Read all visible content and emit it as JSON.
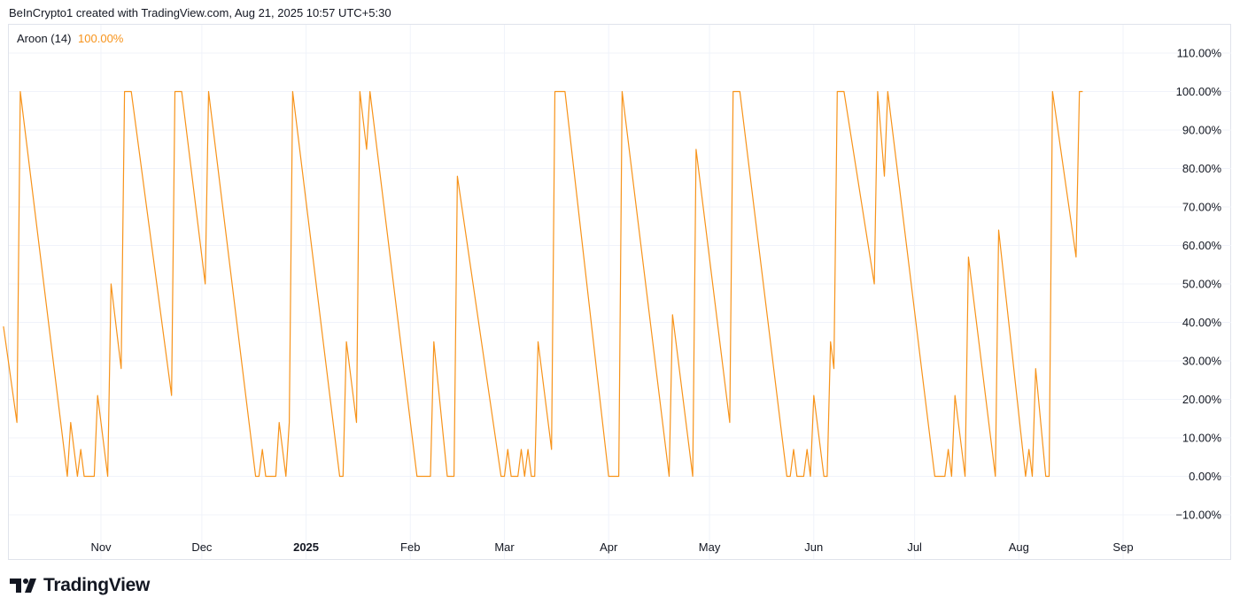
{
  "header": {
    "attribution": "BeInCrypto1 created with TradingView.com, Aug 21, 2025 10:57 UTC+5:30"
  },
  "legend": {
    "name": "Aroon (14)",
    "value": "100.00%"
  },
  "brand": {
    "name": "TradingView"
  },
  "colors": {
    "line": "#f7931a",
    "grid": "#f0f3fa",
    "text": "#131722"
  },
  "chart_data": {
    "type": "line",
    "ylim": [
      -15,
      117
    ],
    "grid": true,
    "y_ticks": [
      {
        "value": 110,
        "label": "110.00%"
      },
      {
        "value": 100,
        "label": "100.00%"
      },
      {
        "value": 90,
        "label": "90.00%"
      },
      {
        "value": 80,
        "label": "80.00%"
      },
      {
        "value": 70,
        "label": "70.00%"
      },
      {
        "value": 60,
        "label": "60.00%"
      },
      {
        "value": 50,
        "label": "50.00%"
      },
      {
        "value": 40,
        "label": "40.00%"
      },
      {
        "value": 30,
        "label": "30.00%"
      },
      {
        "value": 20,
        "label": "20.00%"
      },
      {
        "value": 10,
        "label": "10.00%"
      },
      {
        "value": 0,
        "label": "0.00%"
      },
      {
        "value": -10,
        "label": "−10.00%"
      }
    ],
    "x_ticks": [
      {
        "date": "2024-11-01",
        "label": "Nov",
        "bold": false
      },
      {
        "date": "2024-12-01",
        "label": "Dec",
        "bold": false
      },
      {
        "date": "2025-01-01",
        "label": "2025",
        "bold": true
      },
      {
        "date": "2025-02-01",
        "label": "Feb",
        "bold": false
      },
      {
        "date": "2025-03-01",
        "label": "Mar",
        "bold": false
      },
      {
        "date": "2025-04-01",
        "label": "Apr",
        "bold": false
      },
      {
        "date": "2025-05-01",
        "label": "May",
        "bold": false
      },
      {
        "date": "2025-06-01",
        "label": "Jun",
        "bold": false
      },
      {
        "date": "2025-07-01",
        "label": "Jul",
        "bold": false
      },
      {
        "date": "2025-08-01",
        "label": "Aug",
        "bold": false
      },
      {
        "date": "2025-09-01",
        "label": "Sep",
        "bold": false
      }
    ],
    "series": [
      {
        "points": [
          [
            "2024-10-03",
            39
          ],
          [
            "2024-10-07",
            14
          ],
          [
            "2024-10-08",
            100
          ],
          [
            "2024-10-22",
            0
          ],
          [
            "2024-10-23",
            14
          ],
          [
            "2024-10-24",
            7
          ],
          [
            "2024-10-25",
            0
          ],
          [
            "2024-10-26",
            7
          ],
          [
            "2024-10-27",
            0
          ],
          [
            "2024-10-30",
            0
          ],
          [
            "2024-10-31",
            21
          ],
          [
            "2024-11-03",
            0
          ],
          [
            "2024-11-04",
            50
          ],
          [
            "2024-11-07",
            28
          ],
          [
            "2024-11-08",
            100
          ],
          [
            "2024-11-10",
            100
          ],
          [
            "2024-11-22",
            21
          ],
          [
            "2024-11-23",
            100
          ],
          [
            "2024-11-25",
            100
          ],
          [
            "2024-12-02",
            50
          ],
          [
            "2024-12-03",
            100
          ],
          [
            "2024-12-17",
            0
          ],
          [
            "2024-12-18",
            0
          ],
          [
            "2024-12-19",
            7
          ],
          [
            "2024-12-20",
            0
          ],
          [
            "2024-12-23",
            0
          ],
          [
            "2024-12-24",
            14
          ],
          [
            "2024-12-26",
            0
          ],
          [
            "2024-12-27",
            14
          ],
          [
            "2024-12-28",
            100
          ],
          [
            "2025-01-11",
            0
          ],
          [
            "2025-01-12",
            0
          ],
          [
            "2025-01-13",
            35
          ],
          [
            "2025-01-16",
            14
          ],
          [
            "2025-01-17",
            100
          ],
          [
            "2025-01-19",
            85
          ],
          [
            "2025-01-20",
            100
          ],
          [
            "2025-02-03",
            0
          ],
          [
            "2025-02-07",
            0
          ],
          [
            "2025-02-08",
            35
          ],
          [
            "2025-02-12",
            0
          ],
          [
            "2025-02-14",
            0
          ],
          [
            "2025-02-15",
            78
          ],
          [
            "2025-02-28",
            0
          ],
          [
            "2025-03-01",
            0
          ],
          [
            "2025-03-02",
            7
          ],
          [
            "2025-03-03",
            0
          ],
          [
            "2025-03-05",
            0
          ],
          [
            "2025-03-06",
            7
          ],
          [
            "2025-03-07",
            0
          ],
          [
            "2025-03-08",
            7
          ],
          [
            "2025-03-09",
            0
          ],
          [
            "2025-03-10",
            0
          ],
          [
            "2025-03-11",
            35
          ],
          [
            "2025-03-15",
            7
          ],
          [
            "2025-03-16",
            100
          ],
          [
            "2025-03-19",
            100
          ],
          [
            "2025-04-01",
            0
          ],
          [
            "2025-04-04",
            0
          ],
          [
            "2025-04-05",
            100
          ],
          [
            "2025-04-19",
            0
          ],
          [
            "2025-04-20",
            42
          ],
          [
            "2025-04-26",
            0
          ],
          [
            "2025-04-27",
            85
          ],
          [
            "2025-05-07",
            14
          ],
          [
            "2025-05-08",
            100
          ],
          [
            "2025-05-10",
            100
          ],
          [
            "2025-05-24",
            0
          ],
          [
            "2025-05-25",
            0
          ],
          [
            "2025-05-26",
            7
          ],
          [
            "2025-05-27",
            0
          ],
          [
            "2025-05-29",
            0
          ],
          [
            "2025-05-30",
            7
          ],
          [
            "2025-05-31",
            0
          ],
          [
            "2025-06-01",
            21
          ],
          [
            "2025-06-04",
            0
          ],
          [
            "2025-06-05",
            0
          ],
          [
            "2025-06-06",
            35
          ],
          [
            "2025-06-07",
            28
          ],
          [
            "2025-06-08",
            100
          ],
          [
            "2025-06-10",
            100
          ],
          [
            "2025-06-19",
            50
          ],
          [
            "2025-06-20",
            100
          ],
          [
            "2025-06-22",
            78
          ],
          [
            "2025-06-23",
            100
          ],
          [
            "2025-07-06",
            7
          ],
          [
            "2025-07-07",
            0
          ],
          [
            "2025-07-10",
            0
          ],
          [
            "2025-07-11",
            7
          ],
          [
            "2025-07-12",
            0
          ],
          [
            "2025-07-13",
            21
          ],
          [
            "2025-07-16",
            0
          ],
          [
            "2025-07-17",
            57
          ],
          [
            "2025-07-25",
            0
          ],
          [
            "2025-07-26",
            64
          ],
          [
            "2025-08-03",
            0
          ],
          [
            "2025-08-04",
            7
          ],
          [
            "2025-08-05",
            0
          ],
          [
            "2025-08-06",
            28
          ],
          [
            "2025-08-09",
            0
          ],
          [
            "2025-08-10",
            0
          ],
          [
            "2025-08-11",
            100
          ],
          [
            "2025-08-18",
            57
          ],
          [
            "2025-08-19",
            100
          ],
          [
            "2025-08-20",
            100
          ]
        ]
      }
    ]
  }
}
